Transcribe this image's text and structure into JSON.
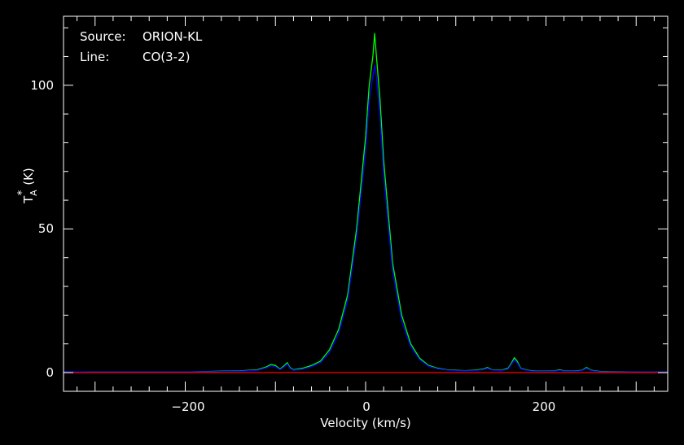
{
  "chart_data": {
    "type": "line",
    "title": "",
    "xlabel": "Velocity (km/s)",
    "ylabel": "T*A (K)",
    "ylabel_main": "T",
    "ylabel_sub": "A",
    "ylabel_sup": "*",
    "ylabel_unit": "(K)",
    "xlim": [
      -335,
      335
    ],
    "ylim": [
      -6.5,
      124
    ],
    "grid": false,
    "legend": "none",
    "annotations": {
      "source_key": "Source:",
      "source_value": "ORION-KL",
      "line_key": "Line:",
      "line_value": "CO(3-2)"
    },
    "x_ticks": [
      -200,
      0,
      200
    ],
    "x_tick_labels": [
      "−200",
      "0",
      "200"
    ],
    "y_ticks": [
      0,
      50,
      100
    ],
    "y_tick_labels": [
      "0",
      "50",
      "100"
    ],
    "colors": {
      "background": "#000000",
      "axes": "#ffffff",
      "green_series": "#00ff00",
      "blue_series": "#0000ff",
      "baseline": "#ff0000"
    },
    "series": [
      {
        "color": "#00ff00",
        "x": [
          -335,
          -300,
          -250,
          -200,
          -160,
          -140,
          -120,
          -110,
          -105,
          -100,
          -95,
          -90,
          -87,
          -84,
          -80,
          -70,
          -60,
          -50,
          -40,
          -30,
          -20,
          -10,
          0,
          4,
          8,
          10,
          12,
          16,
          20,
          30,
          40,
          50,
          60,
          70,
          80,
          90,
          100,
          110,
          120,
          130,
          135,
          140,
          150,
          158,
          162,
          165,
          168,
          172,
          180,
          190,
          200,
          210,
          215,
          220,
          230,
          240,
          245,
          250,
          260,
          280,
          300,
          335
        ],
        "y": [
          0.3,
          0.2,
          0.2,
          0.2,
          0.5,
          0.6,
          1.0,
          2.0,
          2.8,
          2.5,
          1.2,
          2.5,
          3.5,
          1.8,
          1.0,
          1.5,
          2.5,
          4.0,
          8.0,
          15.0,
          27.0,
          50.0,
          82.0,
          100.0,
          110.0,
          118.0,
          110.0,
          95.0,
          74.0,
          38.0,
          20.0,
          10.0,
          5.0,
          2.5,
          1.5,
          1.0,
          0.8,
          0.7,
          0.8,
          1.2,
          1.8,
          1.0,
          0.8,
          1.5,
          3.5,
          5.2,
          4.0,
          1.5,
          0.8,
          0.5,
          0.5,
          0.6,
          1.0,
          0.6,
          0.5,
          0.8,
          1.8,
          0.8,
          0.4,
          0.3,
          0.2,
          0.2
        ]
      },
      {
        "color": "#0000ff",
        "x": [
          -335,
          -300,
          -250,
          -200,
          -160,
          -140,
          -120,
          -110,
          -105,
          -100,
          -95,
          -90,
          -87,
          -84,
          -80,
          -70,
          -60,
          -50,
          -40,
          -30,
          -20,
          -10,
          0,
          4,
          8,
          10,
          12,
          16,
          20,
          30,
          40,
          50,
          60,
          70,
          80,
          90,
          100,
          110,
          120,
          130,
          135,
          140,
          150,
          158,
          162,
          165,
          168,
          172,
          180,
          190,
          200,
          210,
          215,
          220,
          230,
          240,
          245,
          250,
          260,
          280,
          300,
          335
        ],
        "y": [
          0.3,
          0.2,
          0.2,
          0.2,
          0.4,
          0.5,
          0.8,
          1.7,
          2.4,
          2.1,
          1.0,
          2.1,
          3.0,
          1.5,
          0.8,
          1.2,
          2.1,
          3.4,
          7.0,
          13.5,
          25.0,
          47.0,
          77.0,
          95.0,
          103.0,
          107.0,
          103.0,
          89.0,
          69.0,
          35.0,
          18.0,
          9.0,
          4.5,
          2.2,
          1.3,
          0.9,
          0.7,
          0.6,
          0.7,
          1.0,
          1.5,
          0.9,
          0.7,
          1.2,
          3.0,
          4.5,
          3.4,
          1.3,
          0.7,
          0.4,
          0.4,
          0.5,
          0.8,
          0.5,
          0.4,
          0.7,
          1.5,
          0.7,
          0.3,
          0.2,
          0.2,
          0.2
        ]
      },
      {
        "color": "#ff0000",
        "x": [
          -335,
          335
        ],
        "y": [
          0,
          0
        ]
      }
    ]
  }
}
